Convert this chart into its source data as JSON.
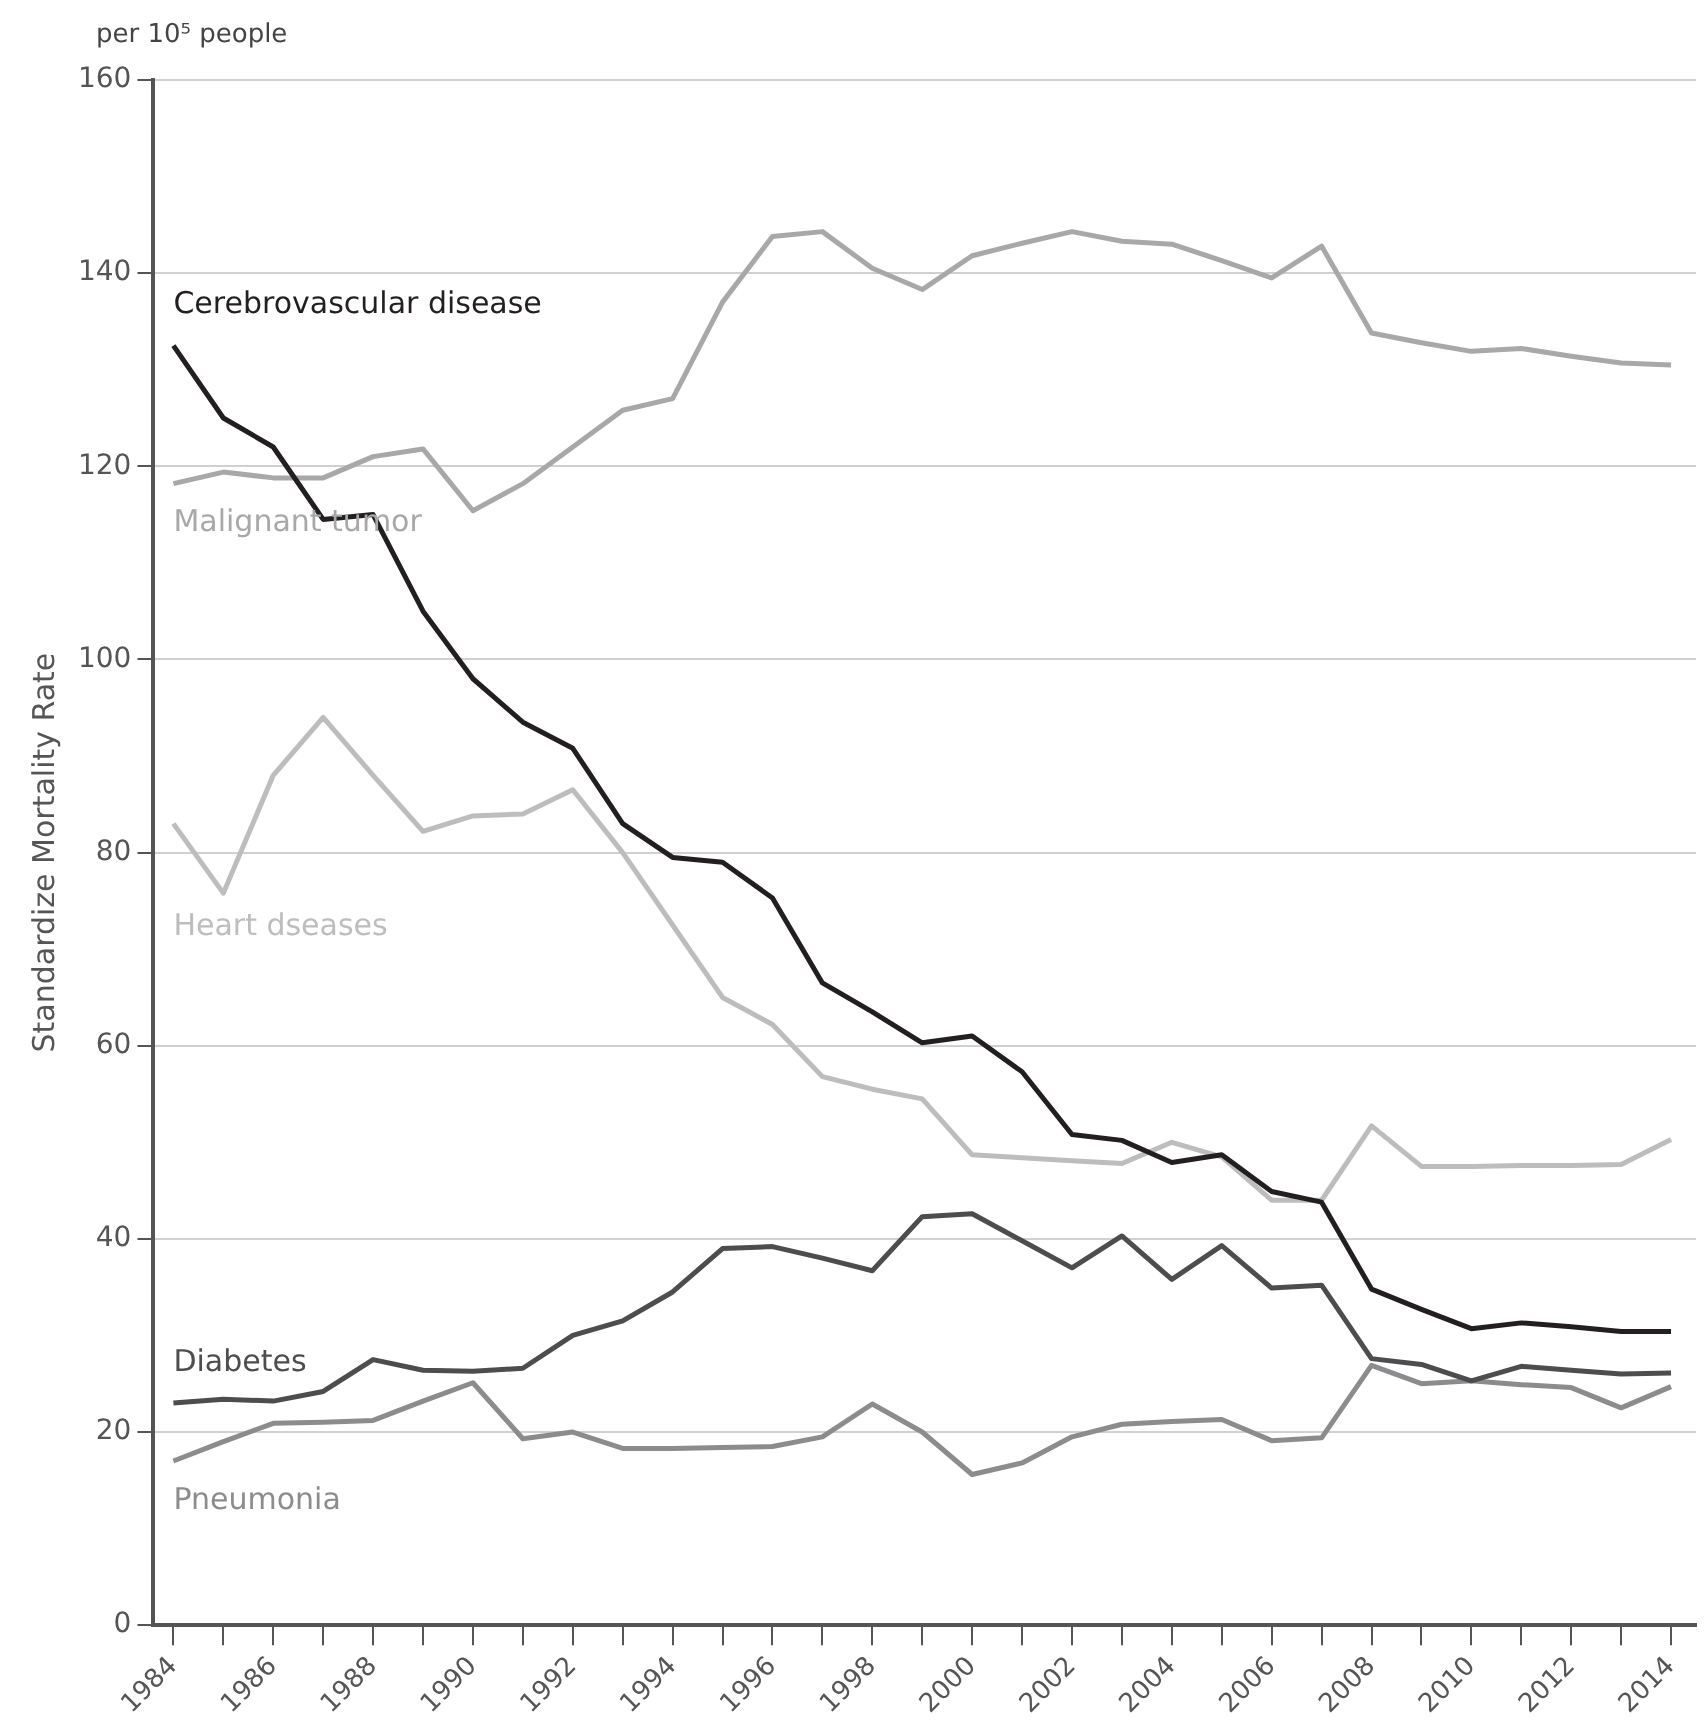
{
  "chart_data": {
    "type": "line",
    "ylabel": "Standardize Mortality Rate",
    "annotations": [
      "per 10⁵ people"
    ],
    "x": [
      1984,
      1985,
      1986,
      1987,
      1988,
      1989,
      1990,
      1991,
      1992,
      1993,
      1994,
      1995,
      1996,
      1997,
      1998,
      1999,
      2000,
      2001,
      2002,
      2003,
      2004,
      2005,
      2006,
      2007,
      2008,
      2009,
      2010,
      2011,
      2012,
      2013,
      2014
    ],
    "xlim": [
      1983.6,
      2014.5
    ],
    "xticks": [
      1984,
      {
        "value": 1985,
        "label": null
      },
      1986,
      {
        "value": 1987,
        "label": null
      },
      1988,
      {
        "value": 1989,
        "label": null
      },
      1990,
      {
        "value": 1991,
        "label": null
      },
      1992,
      {
        "value": 1993,
        "label": null
      },
      1994,
      {
        "value": 1995,
        "label": null
      },
      1996,
      {
        "value": 1997,
        "label": null
      },
      1998,
      {
        "value": 1999,
        "label": null
      },
      2000,
      {
        "value": 2001,
        "label": null
      },
      2002,
      {
        "value": 2003,
        "label": null
      },
      2004,
      {
        "value": 2005,
        "label": null
      },
      2006,
      {
        "value": 2007,
        "label": null
      },
      2008,
      {
        "value": 2009,
        "label": null
      },
      2010,
      {
        "value": 2011,
        "label": null
      },
      2012,
      {
        "value": 2013,
        "label": null
      },
      2014
    ],
    "ylim": [
      0,
      160
    ],
    "yticks": [
      0,
      20,
      40,
      60,
      80,
      100,
      120,
      140,
      160
    ],
    "grid": "y",
    "legend": false,
    "marker": "none",
    "line_style": "solid",
    "series": [
      {
        "name": "Cerebrovascular disease",
        "color": "#231f20",
        "values": [
          132.5,
          125,
          122,
          114.5,
          115,
          105,
          98,
          93.5,
          90.8,
          83,
          79.5,
          79,
          75.3,
          66.5,
          63.5,
          60.3,
          61,
          57.3,
          50.8,
          50.2,
          47.9,
          48.7,
          44.9,
          43.8,
          34.8,
          32.7,
          30.7,
          31.3,
          30.9,
          30.4,
          30.4
        ]
      },
      {
        "name": "Malignant tumor",
        "color": "#a8a8aa",
        "values": [
          118.2,
          119.4,
          118.8,
          118.8,
          121,
          121.8,
          115.4,
          118.2,
          122,
          125.8,
          127,
          137,
          143.8,
          144.3,
          140.5,
          138.3,
          141.8,
          143.1,
          144.3,
          143.3,
          143,
          141.3,
          139.5,
          142.8,
          133.8,
          132.8,
          131.9,
          132.2,
          131.4,
          130.7,
          130.5
        ]
      },
      {
        "name": "Heart dseases",
        "color": "#bdbdbd",
        "values": [
          83,
          75.8,
          88,
          94,
          88,
          82.2,
          83.8,
          84,
          86.5,
          80,
          72.5,
          65,
          62.2,
          56.8,
          55.5,
          54.5,
          48.7,
          48.4,
          48.1,
          47.8,
          50,
          48.5,
          44,
          44,
          51.7,
          47.5,
          47.5,
          47.6,
          47.6,
          47.7,
          50.3
        ]
      },
      {
        "name": "Diabetes",
        "color": "#4d4d4f",
        "values": [
          23,
          23.4,
          23.2,
          24.2,
          27.5,
          26.4,
          26.3,
          26.6,
          30,
          31.5,
          34.5,
          39,
          39.2,
          38,
          36.7,
          42.3,
          42.6,
          39.8,
          37,
          40.3,
          35.8,
          39.3,
          34.9,
          35.2,
          27.6,
          27,
          25.3,
          26.8,
          26.4,
          26,
          26.1
        ]
      },
      {
        "name": "Pneumonia",
        "color": "#8c8c8e",
        "values": [
          17,
          19,
          20.9,
          21,
          21.2,
          23.2,
          25.1,
          19.3,
          20,
          18.3,
          18.3,
          18.4,
          18.5,
          19.5,
          22.9,
          20,
          15.6,
          16.8,
          19.5,
          20.8,
          21.1,
          21.3,
          19.1,
          19.4,
          26.9,
          25,
          25.3,
          24.9,
          24.6,
          22.5,
          24.7
        ]
      }
    ]
  }
}
